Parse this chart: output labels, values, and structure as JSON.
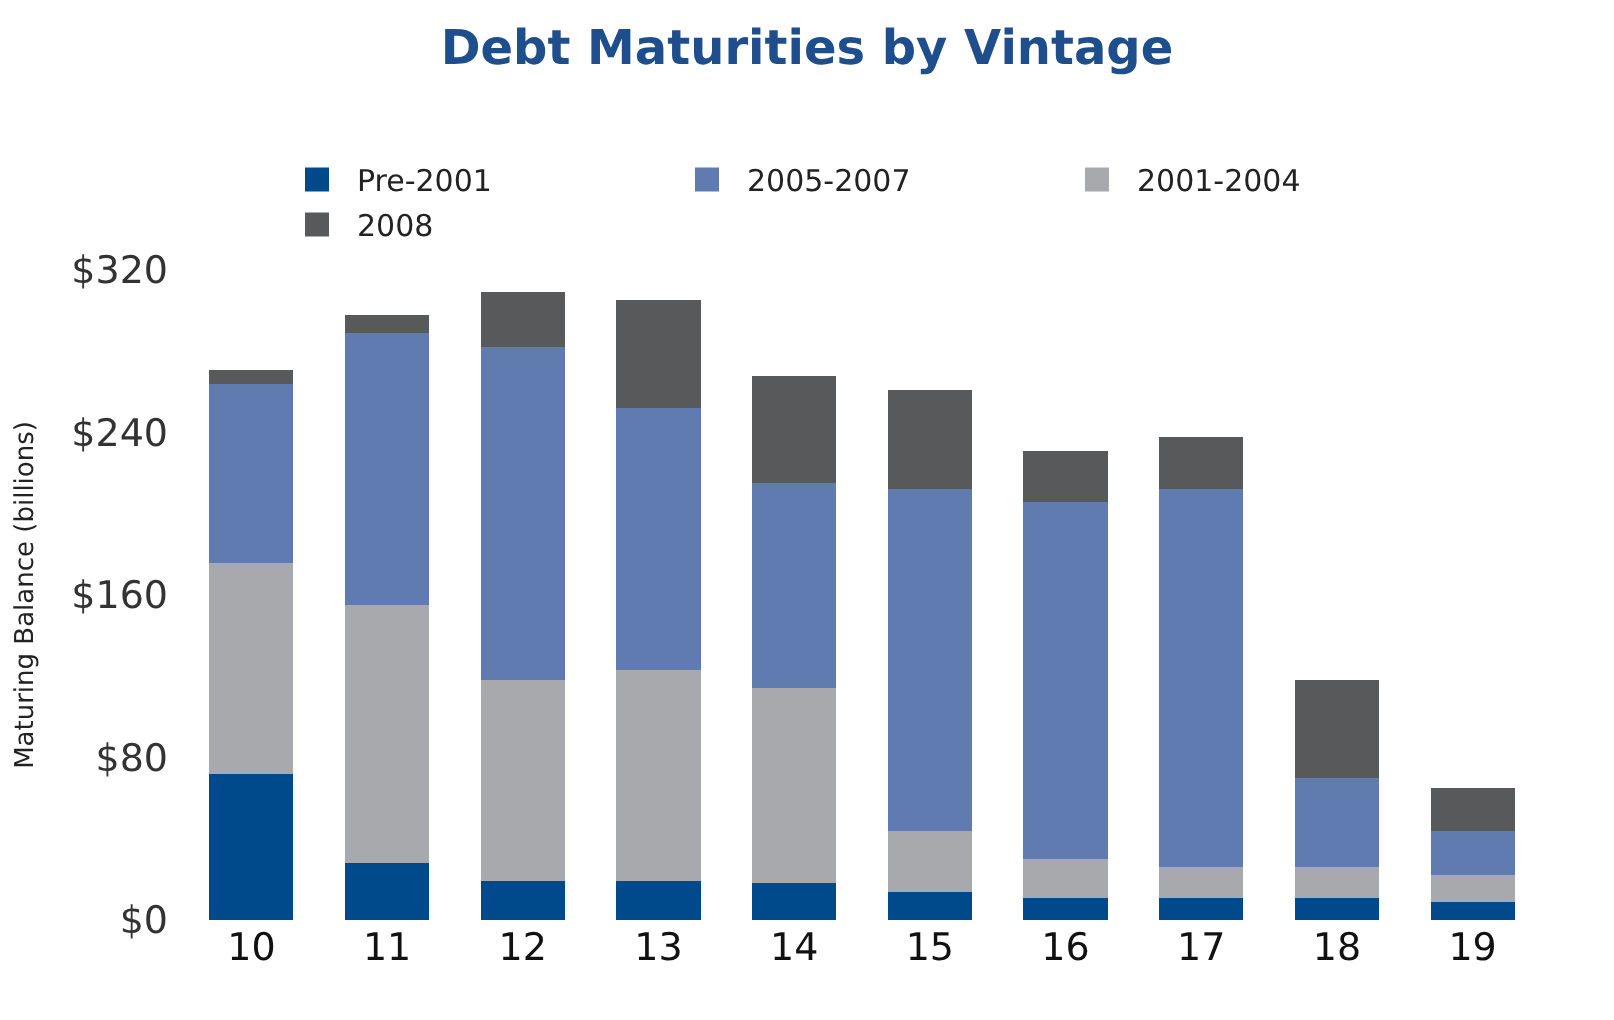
{
  "chart_data": {
    "type": "bar",
    "stacked": true,
    "title": "Debt Maturities by Vintage",
    "ylabel": "Maturing Balance (billions)",
    "categories": [
      "10",
      "11",
      "12",
      "13",
      "14",
      "15",
      "16",
      "17",
      "18",
      "19"
    ],
    "series": [
      {
        "name": "Pre-2001",
        "color": "#004a8c",
        "values": [
          72,
          28,
          19,
          19,
          18,
          14,
          11,
          11,
          11,
          9
        ]
      },
      {
        "name": "2001-2004",
        "color": "#a7a9ac",
        "values": [
          104,
          127,
          99,
          104,
          96,
          30,
          19,
          15,
          15,
          13
        ]
      },
      {
        "name": "2005-2007",
        "color": "#607bb0",
        "values": [
          88,
          134,
          164,
          129,
          101,
          168,
          176,
          186,
          44,
          22
        ]
      },
      {
        "name": "2008",
        "color": "#58595b",
        "values": [
          7,
          9,
          27,
          53,
          53,
          49,
          25,
          26,
          48,
          21
        ]
      }
    ],
    "ylim": [
      0,
      320
    ],
    "yticks": [
      {
        "value": 0,
        "label": "$0"
      },
      {
        "value": 80,
        "label": "$80"
      },
      {
        "value": 160,
        "label": "$160"
      },
      {
        "value": 240,
        "label": "$240"
      },
      {
        "value": 320,
        "label": "$320"
      }
    ],
    "grid": false,
    "legend": "top"
  }
}
